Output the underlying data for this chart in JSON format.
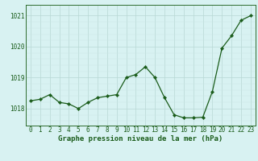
{
  "x": [
    0,
    1,
    2,
    3,
    4,
    5,
    6,
    7,
    8,
    9,
    10,
    11,
    12,
    13,
    14,
    15,
    16,
    17,
    18,
    19,
    20,
    21,
    22,
    23
  ],
  "y": [
    1018.25,
    1018.3,
    1018.45,
    1018.2,
    1018.15,
    1018.0,
    1018.2,
    1018.35,
    1018.4,
    1018.45,
    1019.0,
    1019.1,
    1019.35,
    1019.0,
    1018.35,
    1017.8,
    1017.7,
    1017.7,
    1017.72,
    1018.55,
    1019.95,
    1020.35,
    1020.85,
    1021.0
  ],
  "line_color": "#1a5c1a",
  "marker": "D",
  "marker_size": 2.2,
  "bg_color": "#d8f2f2",
  "grid_color_major": "#b8d8d4",
  "grid_color_minor": "#cce8e4",
  "yticks": [
    1018,
    1019,
    1020,
    1021
  ],
  "ylim": [
    1017.45,
    1021.35
  ],
  "xlim": [
    -0.5,
    23.5
  ],
  "xlabel": "Graphe pression niveau de la mer (hPa)",
  "xlabel_fontsize": 6.5,
  "tick_fontsize": 5.5,
  "line_color_hex": "#1a5c1a",
  "spine_color": "#2d6b2d"
}
